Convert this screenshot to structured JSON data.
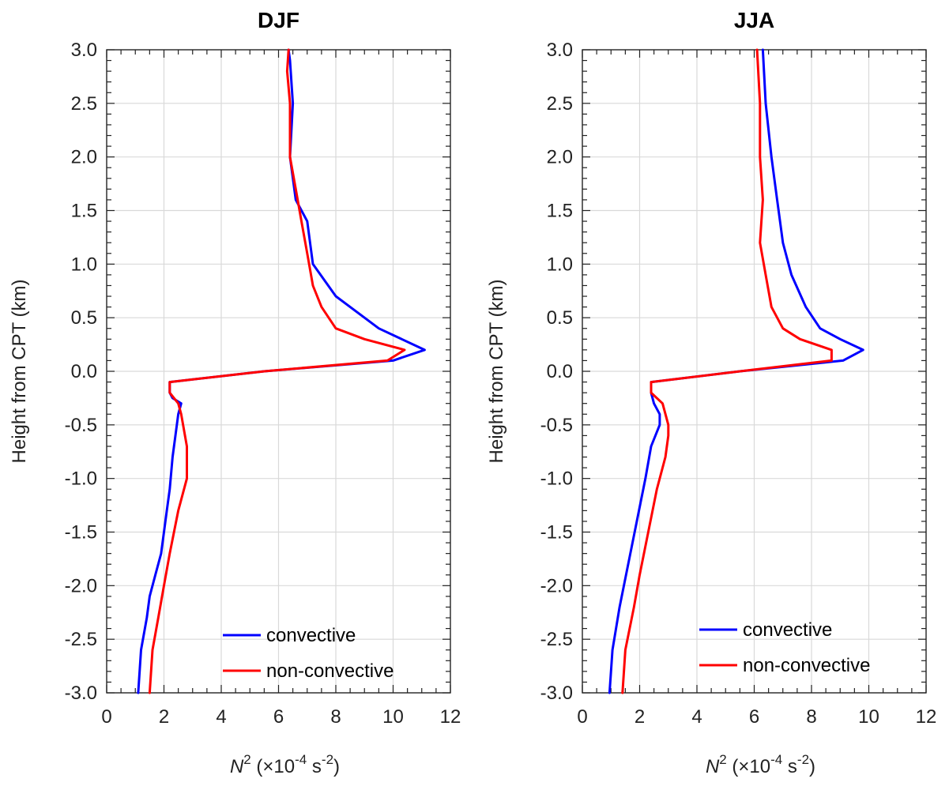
{
  "chart_data": [
    {
      "type": "line",
      "title": "DJF",
      "xlabel": {
        "symbol": "N",
        "sup": "2",
        "units_pre": "(×10",
        "units_exp": "-4",
        "units_mid": " s",
        "units_exp2": "-2",
        "units_post": ")"
      },
      "ylabel": "Height from CPT (km)",
      "xlim": [
        0,
        12
      ],
      "ylim": [
        -3.0,
        3.0
      ],
      "xticks": [
        "0",
        "2",
        "4",
        "6",
        "8",
        "10",
        "12"
      ],
      "yticks": [
        "-3.0",
        "-2.5",
        "-2.0",
        "-1.5",
        "-1.0",
        "-0.5",
        "0.0",
        "0.5",
        "1.0",
        "1.5",
        "2.0",
        "2.5",
        "3.0"
      ],
      "grid": true,
      "legend_position": "bottom-right",
      "series": [
        {
          "name": "convective",
          "color": "#0000ff",
          "points": [
            [
              1.1,
              -3.0
            ],
            [
              1.2,
              -2.6
            ],
            [
              1.4,
              -2.3
            ],
            [
              1.5,
              -2.1
            ],
            [
              1.7,
              -1.9
            ],
            [
              1.9,
              -1.7
            ],
            [
              2.0,
              -1.5
            ],
            [
              2.1,
              -1.3
            ],
            [
              2.2,
              -1.1
            ],
            [
              2.3,
              -0.8
            ],
            [
              2.4,
              -0.6
            ],
            [
              2.5,
              -0.4
            ],
            [
              2.6,
              -0.3
            ],
            [
              2.3,
              -0.25
            ],
            [
              2.2,
              -0.2
            ],
            [
              2.2,
              -0.1
            ],
            [
              5.5,
              0.0
            ],
            [
              10.0,
              0.1
            ],
            [
              11.1,
              0.2
            ],
            [
              9.5,
              0.4
            ],
            [
              8.0,
              0.7
            ],
            [
              7.2,
              1.0
            ],
            [
              7.0,
              1.4
            ],
            [
              6.6,
              1.6
            ],
            [
              6.4,
              2.0
            ],
            [
              6.5,
              2.5
            ],
            [
              6.4,
              2.9
            ],
            [
              6.35,
              3.0
            ]
          ]
        },
        {
          "name": "non-convective",
          "color": "#ff0000",
          "points": [
            [
              1.5,
              -3.0
            ],
            [
              1.6,
              -2.6
            ],
            [
              1.8,
              -2.3
            ],
            [
              2.0,
              -2.0
            ],
            [
              2.2,
              -1.7
            ],
            [
              2.5,
              -1.3
            ],
            [
              2.8,
              -1.0
            ],
            [
              2.8,
              -0.8
            ],
            [
              2.8,
              -0.7
            ],
            [
              2.6,
              -0.4
            ],
            [
              2.5,
              -0.3
            ],
            [
              2.2,
              -0.2
            ],
            [
              2.2,
              -0.1
            ],
            [
              5.5,
              0.0
            ],
            [
              9.8,
              0.1
            ],
            [
              10.4,
              0.2
            ],
            [
              9.0,
              0.3
            ],
            [
              8.0,
              0.4
            ],
            [
              7.5,
              0.6
            ],
            [
              7.2,
              0.8
            ],
            [
              7.0,
              1.1
            ],
            [
              6.8,
              1.4
            ],
            [
              6.6,
              1.7
            ],
            [
              6.4,
              2.0
            ],
            [
              6.4,
              2.5
            ],
            [
              6.3,
              2.8
            ],
            [
              6.35,
              3.0
            ]
          ]
        }
      ]
    },
    {
      "type": "line",
      "title": "JJA",
      "xlabel": {
        "symbol": "N",
        "sup": "2",
        "units_pre": "(×10",
        "units_exp": "-4",
        "units_mid": " s",
        "units_exp2": "-2",
        "units_post": ")"
      },
      "ylabel": "Height from CPT (km)",
      "xlim": [
        0,
        12
      ],
      "ylim": [
        -3.0,
        3.0
      ],
      "xticks": [
        "0",
        "2",
        "4",
        "6",
        "8",
        "10",
        "12"
      ],
      "yticks": [
        "-3.0",
        "-2.5",
        "-2.0",
        "-1.5",
        "-1.0",
        "-0.5",
        "0.0",
        "0.5",
        "1.0",
        "1.5",
        "2.0",
        "2.5",
        "3.0"
      ],
      "grid": true,
      "legend_position": "bottom-right",
      "series": [
        {
          "name": "convective",
          "color": "#0000ff",
          "points": [
            [
              0.95,
              -3.0
            ],
            [
              1.05,
              -2.6
            ],
            [
              1.3,
              -2.2
            ],
            [
              1.6,
              -1.8
            ],
            [
              1.9,
              -1.4
            ],
            [
              2.2,
              -1.0
            ],
            [
              2.4,
              -0.7
            ],
            [
              2.7,
              -0.5
            ],
            [
              2.7,
              -0.4
            ],
            [
              2.5,
              -0.3
            ],
            [
              2.4,
              -0.2
            ],
            [
              2.4,
              -0.1
            ],
            [
              5.5,
              0.0
            ],
            [
              9.1,
              0.1
            ],
            [
              9.8,
              0.2
            ],
            [
              9.0,
              0.3
            ],
            [
              8.3,
              0.4
            ],
            [
              7.8,
              0.6
            ],
            [
              7.3,
              0.9
            ],
            [
              7.0,
              1.2
            ],
            [
              6.8,
              1.6
            ],
            [
              6.6,
              2.0
            ],
            [
              6.4,
              2.5
            ],
            [
              6.3,
              3.0
            ]
          ]
        },
        {
          "name": "non-convective",
          "color": "#ff0000",
          "points": [
            [
              1.4,
              -3.0
            ],
            [
              1.5,
              -2.6
            ],
            [
              1.8,
              -2.2
            ],
            [
              2.0,
              -1.9
            ],
            [
              2.3,
              -1.5
            ],
            [
              2.6,
              -1.1
            ],
            [
              2.9,
              -0.8
            ],
            [
              3.0,
              -0.6
            ],
            [
              3.0,
              -0.5
            ],
            [
              2.8,
              -0.3
            ],
            [
              2.4,
              -0.2
            ],
            [
              2.4,
              -0.1
            ],
            [
              5.5,
              0.0
            ],
            [
              8.7,
              0.1
            ],
            [
              8.7,
              0.2
            ],
            [
              7.6,
              0.3
            ],
            [
              7.0,
              0.4
            ],
            [
              6.6,
              0.6
            ],
            [
              6.4,
              0.9
            ],
            [
              6.2,
              1.2
            ],
            [
              6.3,
              1.6
            ],
            [
              6.2,
              2.0
            ],
            [
              6.2,
              2.5
            ],
            [
              6.1,
              3.0
            ]
          ]
        }
      ]
    }
  ]
}
